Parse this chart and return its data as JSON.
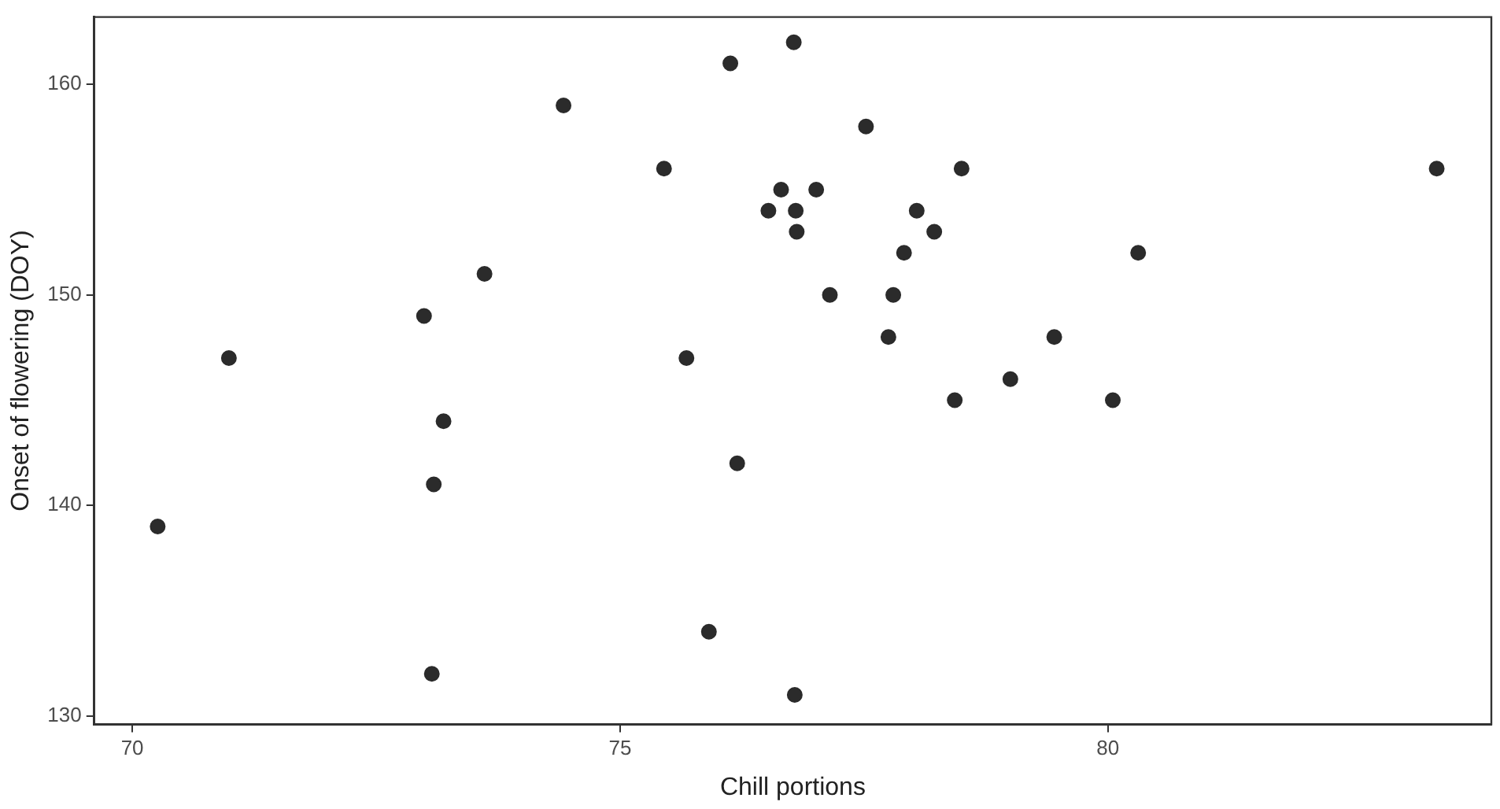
{
  "chart_data": {
    "type": "scatter",
    "xlabel": "Chill portions",
    "ylabel": "Onset of flowering (DOY)",
    "x": [
      70.26,
      70.99,
      72.99,
      73.09,
      73.19,
      73.61,
      73.07,
      74.42,
      75.45,
      75.68,
      75.91,
      76.13,
      76.2,
      76.52,
      76.65,
      76.78,
      76.8,
      76.81,
      76.79,
      77.01,
      77.15,
      77.52,
      77.75,
      77.8,
      77.91,
      78.04,
      78.22,
      78.43,
      78.5,
      79.0,
      79.45,
      80.05,
      80.31,
      83.37
    ],
    "values": [
      139,
      147,
      149,
      141,
      144,
      151,
      132,
      159,
      156,
      147,
      134,
      161,
      142,
      154,
      155,
      162,
      154,
      153,
      131,
      155,
      150,
      158,
      148,
      150,
      152,
      154,
      153,
      145,
      156,
      146,
      148,
      145,
      152,
      156
    ],
    "color": "#2b2b2b",
    "marker": "circle",
    "xlim": [
      69.61,
      83.93
    ],
    "xticks": [
      70,
      75,
      80
    ],
    "ylim": [
      129.6,
      163.2
    ],
    "yticks": [
      130,
      140,
      150,
      160
    ],
    "grid": false,
    "legend": false
  }
}
